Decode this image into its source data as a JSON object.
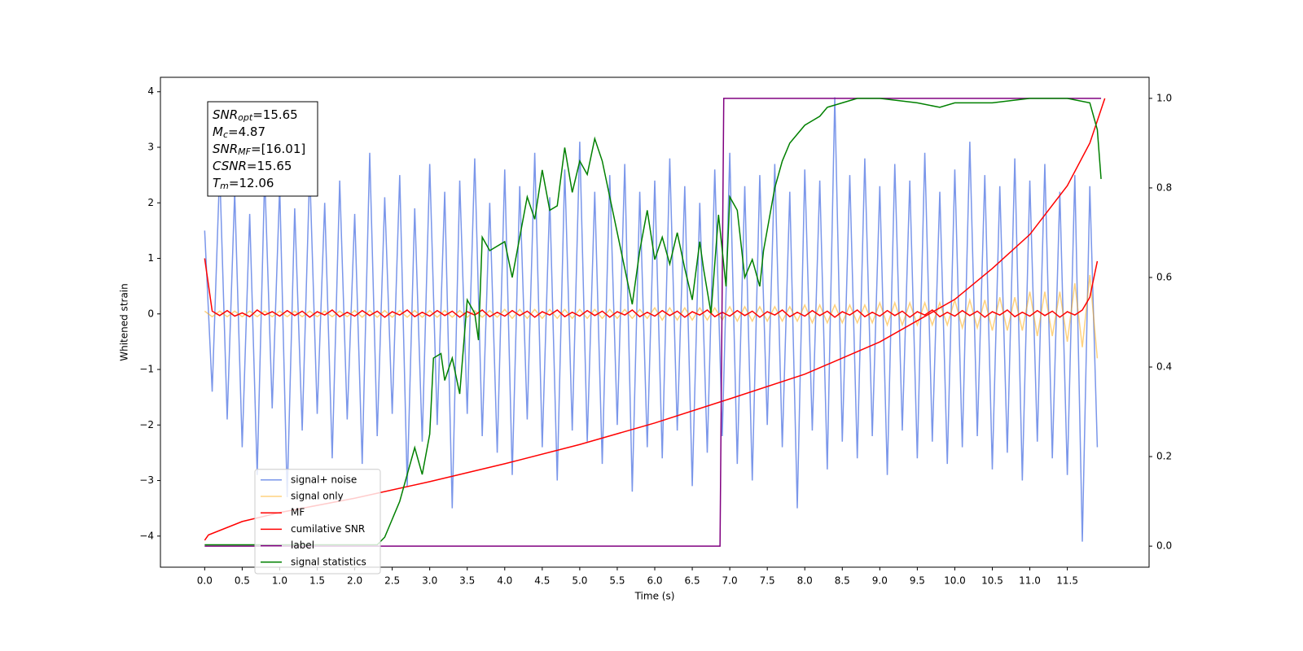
{
  "chart_data": {
    "type": "line",
    "xlabel": "Time (s)",
    "ylabel": "Whitened strain",
    "xlim": [
      -0.59,
      12.59
    ],
    "ylim": [
      -4.56,
      4.26
    ],
    "y2lim": [
      -0.047,
      1.047
    ],
    "xticks": [
      {
        "value": 0,
        "label": "0.0"
      },
      0.5,
      {
        "value": 1,
        "label": "1.0"
      },
      1.5,
      {
        "value": 2,
        "label": "2.0"
      },
      2.5,
      {
        "value": 3,
        "label": "3.0"
      },
      3.5,
      {
        "value": 4,
        "label": "4.0"
      },
      4.5,
      {
        "value": 5,
        "label": "5.0"
      },
      5.5,
      {
        "value": 6,
        "label": "6.0"
      },
      6.5,
      {
        "value": 7,
        "label": "7.0"
      },
      7.5,
      {
        "value": 8,
        "label": "8.0"
      },
      8.5,
      {
        "value": 9,
        "label": "9.0"
      },
      9.5,
      {
        "value": 10,
        "label": "10.0"
      },
      10.5,
      {
        "value": 11,
        "label": "11.0"
      },
      11.5
    ],
    "yticks": [
      {
        "value": -4,
        "label": "−4"
      },
      {
        "value": -3,
        "label": "−3"
      },
      {
        "value": -2,
        "label": "−2"
      },
      {
        "value": -1,
        "label": "−1"
      },
      0,
      1,
      2,
      3,
      4
    ],
    "y2ticks": [
      {
        "value": 0,
        "label": "0.0"
      },
      0.2,
      0.4,
      0.6,
      0.8,
      {
        "value": 1,
        "label": "1.0"
      }
    ],
    "legend": "lower left",
    "annotation": [
      {
        "name": "SNR",
        "sub": "opt",
        "text": "=15.65"
      },
      {
        "name": "M",
        "sub": "c",
        "text": "=4.87"
      },
      {
        "name": "SNR",
        "sub": "MF",
        "text": "=[16.01]"
      },
      {
        "name": "CSNR",
        "sub": "",
        "text": "=15.65"
      },
      {
        "name": "T",
        "sub": "m",
        "text": "=12.06"
      }
    ],
    "x": [
      0,
      0.1,
      0.2,
      0.3,
      0.4,
      0.5,
      0.6,
      0.7,
      0.8,
      0.9,
      1,
      1.1,
      1.2,
      1.3,
      1.4,
      1.5,
      1.6,
      1.7,
      1.8,
      1.9,
      2,
      2.1,
      2.2,
      2.3,
      2.4,
      2.5,
      2.6,
      2.7,
      2.8,
      2.9,
      3,
      3.1,
      3.2,
      3.3,
      3.4,
      3.5,
      3.6,
      3.7,
      3.8,
      3.9,
      4,
      4.1,
      4.2,
      4.3,
      4.4,
      4.5,
      4.6,
      4.7,
      4.8,
      4.9,
      5,
      5.1,
      5.2,
      5.3,
      5.4,
      5.5,
      5.6,
      5.7,
      5.8,
      5.9,
      6,
      6.1,
      6.2,
      6.3,
      6.4,
      6.5,
      6.6,
      6.7,
      6.8,
      6.9,
      7,
      7.1,
      7.2,
      7.3,
      7.4,
      7.5,
      7.6,
      7.7,
      7.8,
      7.9,
      8,
      8.1,
      8.2,
      8.3,
      8.4,
      8.5,
      8.6,
      8.7,
      8.8,
      8.9,
      9,
      9.1,
      9.2,
      9.3,
      9.4,
      9.5,
      9.6,
      9.7,
      9.8,
      9.9,
      10,
      10.1,
      10.2,
      10.3,
      10.4,
      10.5,
      10.6,
      10.7,
      10.8,
      10.9,
      11,
      11.1,
      11.2,
      11.3,
      11.4,
      11.5,
      11.6,
      11.7,
      11.8,
      11.9
    ],
    "series": [
      {
        "name": "signal+ noise",
        "color": "#4169e1",
        "alpha": 0.7,
        "values": [
          1.5,
          -1.4,
          2.6,
          -1.9,
          2.2,
          -2.4,
          1.8,
          -2.9,
          2.5,
          -1.7,
          2.3,
          -3.3,
          1.9,
          -2.1,
          2.6,
          -1.8,
          2.0,
          -2.6,
          2.4,
          -1.9,
          1.8,
          -2.7,
          2.9,
          -2.2,
          2.1,
          -1.8,
          2.5,
          -3.1,
          1.9,
          -2.3,
          2.7,
          -2.0,
          2.2,
          -3.5,
          2.4,
          -1.8,
          2.8,
          -2.2,
          2.0,
          -2.5,
          2.6,
          -2.9,
          2.3,
          -1.9,
          2.9,
          -2.4,
          2.1,
          -3.0,
          2.6,
          -2.1,
          3.1,
          -2.3,
          2.2,
          -2.7,
          2.5,
          -2.0,
          2.7,
          -3.2,
          2.2,
          -2.4,
          2.4,
          -2.6,
          2.8,
          -2.1,
          2.3,
          -3.1,
          2.0,
          -2.5,
          2.6,
          -2.2,
          2.9,
          -2.7,
          2.3,
          -3.0,
          2.5,
          -2.0,
          2.7,
          -2.4,
          2.2,
          -3.5,
          2.6,
          -2.1,
          2.4,
          -2.8,
          3.9,
          -2.3,
          2.5,
          -2.6,
          2.8,
          -2.2,
          2.3,
          -2.9,
          2.7,
          -2.1,
          2.4,
          -2.6,
          2.9,
          -2.3,
          2.2,
          -2.7,
          2.6,
          -2.4,
          3.1,
          -2.2,
          2.5,
          -2.8,
          2.3,
          -2.5,
          2.8,
          -3.0,
          2.4,
          -2.3,
          2.7,
          -2.6,
          2.2,
          -2.9,
          2.5,
          -4.1,
          2.3,
          -2.4
        ]
      },
      {
        "name": "signal only",
        "color": "#ffa500",
        "alpha": 0.5,
        "values": [
          0.05,
          -0.05,
          0.05,
          -0.05,
          0.05,
          -0.05,
          0.05,
          -0.05,
          0.05,
          -0.05,
          0.05,
          -0.05,
          0.05,
          -0.05,
          0.05,
          -0.05,
          0.05,
          -0.05,
          0.05,
          -0.05,
          0.06,
          -0.06,
          0.06,
          -0.06,
          0.06,
          -0.06,
          0.06,
          -0.06,
          0.06,
          -0.06,
          0.06,
          -0.06,
          0.06,
          -0.06,
          0.06,
          -0.06,
          0.06,
          -0.06,
          0.06,
          -0.06,
          0.08,
          -0.08,
          0.08,
          -0.08,
          0.08,
          -0.08,
          0.08,
          -0.08,
          0.08,
          -0.08,
          0.08,
          -0.08,
          0.08,
          -0.08,
          0.08,
          -0.08,
          0.08,
          -0.08,
          0.08,
          -0.08,
          0.11,
          -0.11,
          0.11,
          -0.11,
          0.11,
          -0.11,
          0.11,
          -0.11,
          0.11,
          -0.11,
          0.13,
          -0.13,
          0.13,
          -0.13,
          0.13,
          -0.13,
          0.13,
          -0.13,
          0.13,
          -0.13,
          0.16,
          -0.16,
          0.16,
          -0.16,
          0.16,
          -0.16,
          0.16,
          -0.16,
          0.16,
          -0.16,
          0.2,
          -0.2,
          0.2,
          -0.2,
          0.2,
          -0.2,
          0.2,
          -0.2,
          0.2,
          -0.2,
          0.25,
          -0.25,
          0.25,
          -0.25,
          0.25,
          -0.3,
          0.3,
          -0.3,
          0.3,
          -0.3,
          0.4,
          -0.4,
          0.4,
          -0.4,
          0.4,
          -0.5,
          0.55,
          -0.6,
          0.7,
          -0.8
        ]
      },
      {
        "name": "MF",
        "color": "#ff0000",
        "values": [
          1.0,
          0.05,
          -0.03,
          0.06,
          -0.04,
          0.02,
          -0.05,
          0.07,
          -0.02,
          0.04,
          -0.04,
          0.06,
          -0.03,
          0.05,
          -0.06,
          0.04,
          -0.02,
          0.07,
          -0.05,
          0.03,
          -0.04,
          0.06,
          -0.03,
          0.05,
          -0.06,
          0.04,
          -0.02,
          0.07,
          -0.05,
          0.03,
          -0.04,
          0.06,
          -0.03,
          0.05,
          -0.06,
          0.04,
          -0.02,
          0.07,
          -0.05,
          0.03,
          -0.04,
          0.06,
          -0.03,
          0.05,
          -0.06,
          0.04,
          -0.02,
          0.07,
          -0.05,
          0.03,
          -0.04,
          0.06,
          -0.03,
          0.05,
          -0.06,
          0.04,
          -0.02,
          0.07,
          -0.05,
          0.03,
          -0.04,
          0.06,
          -0.03,
          0.05,
          -0.06,
          0.04,
          -0.02,
          0.07,
          -0.05,
          0.03,
          -0.04,
          0.06,
          -0.03,
          0.05,
          -0.06,
          0.04,
          -0.02,
          0.07,
          -0.05,
          0.03,
          -0.04,
          0.06,
          -0.03,
          0.05,
          -0.06,
          0.04,
          -0.02,
          0.07,
          -0.05,
          0.03,
          -0.04,
          0.06,
          -0.03,
          0.05,
          -0.06,
          0.04,
          -0.02,
          0.07,
          -0.05,
          0.03,
          -0.04,
          0.06,
          -0.03,
          0.05,
          -0.06,
          0.04,
          -0.02,
          0.07,
          -0.05,
          0.03,
          -0.04,
          0.06,
          -0.03,
          0.05,
          -0.06,
          0.04,
          -0.02,
          0.07,
          0.3,
          0.95
        ]
      },
      {
        "name": "cumilative SNR",
        "color": "#ff0000",
        "axis": "y2",
        "x": [
          0,
          0.05,
          0.5,
          1,
          2,
          3,
          4,
          5,
          6,
          7,
          8,
          9,
          10,
          10.5,
          11,
          11.5,
          11.8,
          12
        ],
        "values": [
          0.013,
          0.025,
          0.055,
          0.075,
          0.107,
          0.144,
          0.184,
          0.227,
          0.275,
          0.329,
          0.384,
          0.456,
          0.551,
          0.62,
          0.696,
          0.805,
          0.9,
          1.0
        ]
      },
      {
        "name": "label",
        "color": "#800080",
        "axis": "y2",
        "x": [
          0,
          6.87,
          6.92,
          11.95
        ],
        "values": [
          0,
          0,
          1,
          1
        ]
      },
      {
        "name": "signal statistics",
        "color": "#008000",
        "axis": "y2",
        "x": [
          0,
          2.3,
          2.4,
          2.5,
          2.6,
          2.7,
          2.8,
          2.9,
          3.0,
          3.05,
          3.15,
          3.2,
          3.3,
          3.4,
          3.5,
          3.6,
          3.65,
          3.7,
          3.8,
          4.0,
          4.1,
          4.3,
          4.4,
          4.5,
          4.6,
          4.7,
          4.8,
          4.9,
          5.0,
          5.1,
          5.2,
          5.3,
          5.5,
          5.6,
          5.7,
          5.8,
          5.9,
          6.0,
          6.1,
          6.2,
          6.3,
          6.4,
          6.5,
          6.6,
          6.65,
          6.75,
          6.85,
          6.95,
          7.0,
          7.1,
          7.2,
          7.3,
          7.4,
          7.45,
          7.6,
          7.7,
          7.8,
          7.9,
          8.0,
          8.1,
          8.2,
          8.3,
          8.5,
          8.7,
          9.0,
          9.5,
          9.8,
          10.0,
          10.5,
          11.0,
          11.5,
          11.8,
          11.9,
          11.95
        ],
        "values": [
          0.003,
          0.003,
          0.02,
          0.06,
          0.1,
          0.16,
          0.22,
          0.16,
          0.25,
          0.42,
          0.43,
          0.37,
          0.42,
          0.34,
          0.55,
          0.52,
          0.46,
          0.69,
          0.66,
          0.68,
          0.6,
          0.78,
          0.73,
          0.84,
          0.75,
          0.76,
          0.89,
          0.79,
          0.86,
          0.83,
          0.91,
          0.86,
          0.7,
          0.62,
          0.54,
          0.66,
          0.75,
          0.64,
          0.69,
          0.63,
          0.7,
          0.62,
          0.55,
          0.68,
          0.62,
          0.52,
          0.74,
          0.58,
          0.78,
          0.75,
          0.6,
          0.64,
          0.58,
          0.66,
          0.8,
          0.86,
          0.9,
          0.92,
          0.94,
          0.95,
          0.96,
          0.98,
          0.99,
          1.0,
          1.0,
          0.99,
          0.98,
          0.99,
          0.99,
          1.0,
          1.0,
          0.99,
          0.93,
          0.82
        ]
      }
    ]
  }
}
